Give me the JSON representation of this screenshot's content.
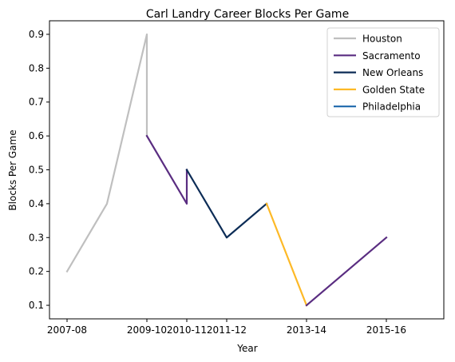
{
  "chart_data": {
    "type": "line",
    "title": "Carl Landry Career Blocks Per Game",
    "xlabel": "Year",
    "ylabel": "Blocks Per Game",
    "x_ticks": [
      "2007-08",
      "2009-10",
      "2010-11",
      "2011-12",
      "2013-14",
      "2015-16"
    ],
    "y_ticks": [
      "0.1",
      "0.2",
      "0.3",
      "0.4",
      "0.5",
      "0.6",
      "0.7",
      "0.8",
      "0.9"
    ],
    "ylim": [
      0.06,
      0.94
    ],
    "grid": false,
    "legend_position": "upper right",
    "series": [
      {
        "name": "Houston",
        "color": "#bfbfbf",
        "points": [
          [
            "2007-08",
            0.2
          ],
          [
            "2008-09",
            0.4
          ],
          [
            "2009-10",
            0.9
          ],
          [
            "2009-10",
            0.6
          ]
        ]
      },
      {
        "name": "Sacramento",
        "color": "#5a2d81",
        "points": [
          [
            "2009-10",
            0.6
          ],
          [
            "2010-11",
            0.4
          ],
          [
            "2010-11",
            0.5
          ]
        ]
      },
      {
        "name": "New Orleans",
        "color": "#0c2c56",
        "points": [
          [
            "2010-11",
            0.5
          ],
          [
            "2011-12",
            0.3
          ],
          [
            "2012-13",
            0.4
          ]
        ]
      },
      {
        "name": "Golden State",
        "color": "#fdb927",
        "points": [
          [
            "2012-13",
            0.4
          ],
          [
            "2013-14",
            0.1
          ]
        ]
      },
      {
        "name": "Philadelphia",
        "color": "#1d68ab",
        "points": []
      },
      {
        "name": "Sacramento",
        "color": "#5a2d81",
        "points": [
          [
            "2013-14",
            0.1
          ],
          [
            "2015-16",
            0.3
          ]
        ]
      }
    ]
  }
}
